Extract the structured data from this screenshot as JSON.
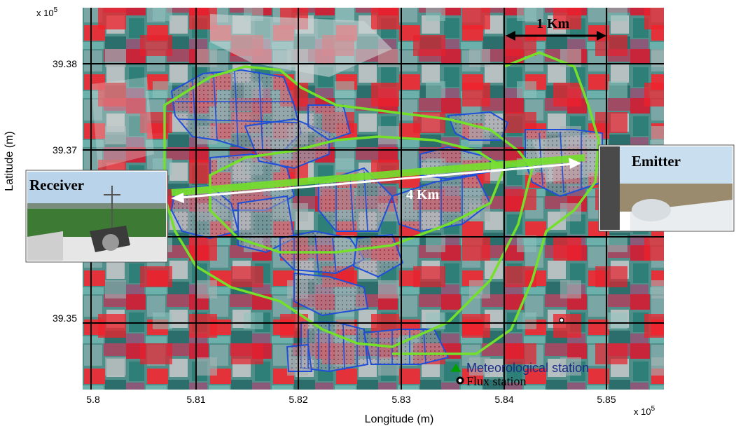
{
  "map": {
    "exponent_y": "x 10",
    "exponent_y_power": "5",
    "exponent_x": "x 10",
    "exponent_x_power": "5",
    "y_ticks": [
      "39.38",
      "39.37",
      "39.35"
    ],
    "x_ticks": [
      "5.8",
      "5.81",
      "5.82",
      "5.83",
      "5.84",
      "5.85"
    ],
    "xlabel": "Longitude (m)",
    "ylabel": "Latitude (m)"
  },
  "annotations": {
    "scale_bar": "1 Km",
    "path_length": "4 Km",
    "receiver": "Receiver",
    "emitter": "Emitter"
  },
  "legend": {
    "items": [
      {
        "label": "Meteorological station",
        "marker": "green-triangle",
        "color": "#00a000"
      },
      {
        "label": "Flux station",
        "marker": "black-circle",
        "color": "#000000"
      }
    ]
  },
  "colors": {
    "field_boundaries": "#1f4fd8",
    "footprint_outline": "#74e02a",
    "path_line": "#ffffff",
    "vegetation_red": "#e0202a",
    "soil_teal": "#4a9a92",
    "grid": "#000000"
  }
}
